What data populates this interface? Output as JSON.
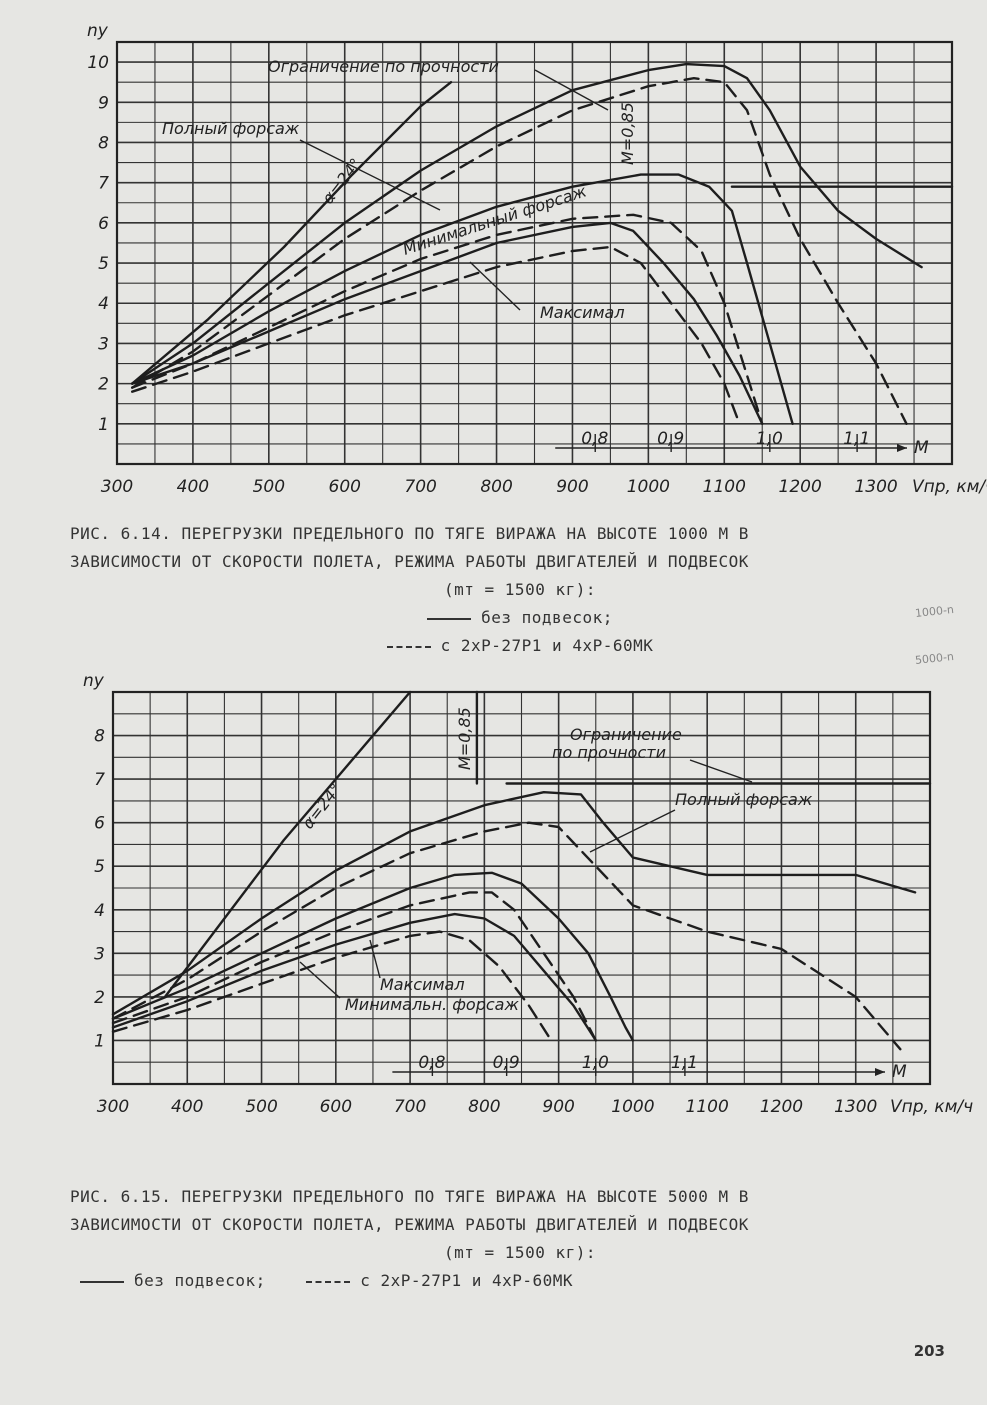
{
  "page": {
    "number": "203"
  },
  "margin_notes": [
    "1000-n",
    "5000-n"
  ],
  "figure1": {
    "caption_line1": "РИС. 6.14. ПЕРЕГРУЗКИ ПРЕДЕЛЬНОГО ПО ТЯГЕ ВИРАЖА НА ВЫСОТЕ 1000 М В",
    "caption_line2": "ЗАВИСИМОСТИ ОТ СКОРОСТИ ПОЛЕТА, РЕЖИМА РАБОТЫ ДВИГАТЕЛЕЙ И ПОДВЕСОК",
    "caption_line3": "(mт = 1500 кг):",
    "legend_solid": "без подвесок;",
    "legend_dashed": "с 2хР-27Р1 и 4хР-60МК"
  },
  "figure2": {
    "caption_line1": "РИС. 6.15. ПЕРЕГРУЗКИ ПРЕДЕЛЬНОГО ПО ТЯГЕ ВИРАЖА НА ВЫСОТЕ 5000 М В",
    "caption_line2": "ЗАВИСИМОСТИ ОТ СКОРОСТИ ПОЛЕТА, РЕЖИМА РАБОТЫ ДВИГАТЕЛЕЙ И ПОДВЕСОК",
    "caption_line3": "(mт = 1500 кг):",
    "legend_solid": "без подвесок;",
    "legend_dashed": "с 2хР-27Р1 и 4хР-60МК"
  },
  "chart_data": [
    {
      "type": "line",
      "title": "",
      "xlabel": "Vпр, км/ч",
      "ylabel": "ny",
      "xlim": [
        300,
        1400
      ],
      "ylim": [
        0,
        10.5
      ],
      "x_ticks": [
        300,
        400,
        500,
        600,
        700,
        800,
        900,
        1000,
        1100,
        1200,
        1300
      ],
      "y_ticks": [
        1,
        2,
        3,
        4,
        5,
        6,
        7,
        8,
        9,
        10
      ],
      "grid": true,
      "mach_scale": {
        "label": "M",
        "ticks": [
          {
            "label": "0,8",
            "x": 930
          },
          {
            "label": "0,9",
            "x": 1030
          },
          {
            "label": "1,0",
            "x": 1160
          },
          {
            "label": "1,1",
            "x": 1275
          }
        ]
      },
      "annotations": [
        "Ограничение по прочности",
        "Полный форсаж",
        "Минимальный форсаж",
        "Максимал",
        "M=0,85",
        "α=24°"
      ],
      "series": [
        {
          "name": "Полный форсаж",
          "style": "solid",
          "x": [
            320,
            400,
            500,
            600,
            700,
            800,
            900,
            1000,
            1050,
            1100,
            1130,
            1160,
            1200,
            1250,
            1300,
            1360
          ],
          "y": [
            2.0,
            3.0,
            4.5,
            6.0,
            7.3,
            8.4,
            9.3,
            9.8,
            9.95,
            9.9,
            9.6,
            8.8,
            7.4,
            6.3,
            5.6,
            4.9
          ]
        },
        {
          "name": "Полный форсаж",
          "style": "dashed",
          "x": [
            320,
            400,
            500,
            600,
            700,
            800,
            900,
            1000,
            1060,
            1100,
            1130,
            1160,
            1200,
            1250,
            1300,
            1340
          ],
          "y": [
            1.9,
            2.8,
            4.2,
            5.6,
            6.8,
            7.9,
            8.8,
            9.4,
            9.6,
            9.5,
            8.8,
            7.2,
            5.6,
            4.0,
            2.5,
            1.0
          ]
        },
        {
          "name": "Минимальный форсаж",
          "style": "solid",
          "x": [
            320,
            400,
            500,
            600,
            700,
            800,
            900,
            990,
            1040,
            1080,
            1110,
            1130,
            1160,
            1190
          ],
          "y": [
            2.0,
            2.7,
            3.8,
            4.8,
            5.7,
            6.4,
            6.9,
            7.2,
            7.2,
            6.9,
            6.3,
            5.0,
            3.0,
            1.0
          ]
        },
        {
          "name": "Минимальный форсаж",
          "style": "dashed",
          "x": [
            320,
            400,
            500,
            600,
            700,
            800,
            900,
            980,
            1030,
            1070,
            1100,
            1125,
            1150
          ],
          "y": [
            1.9,
            2.5,
            3.4,
            4.3,
            5.1,
            5.7,
            6.1,
            6.2,
            6.0,
            5.3,
            4.0,
            2.5,
            1.0
          ]
        },
        {
          "name": "Максимал",
          "style": "solid",
          "x": [
            320,
            400,
            500,
            600,
            700,
            800,
            900,
            950,
            980,
            1020,
            1060,
            1090,
            1120,
            1150
          ],
          "y": [
            2.0,
            2.5,
            3.3,
            4.1,
            4.8,
            5.5,
            5.9,
            6.0,
            5.8,
            5.0,
            4.1,
            3.2,
            2.2,
            1.0
          ]
        },
        {
          "name": "Максимал",
          "style": "dashed",
          "x": [
            320,
            400,
            500,
            600,
            700,
            800,
            900,
            950,
            990,
            1030,
            1070,
            1100,
            1120
          ],
          "y": [
            1.8,
            2.3,
            3.0,
            3.7,
            4.3,
            4.9,
            5.3,
            5.4,
            5.0,
            4.0,
            3.0,
            2.0,
            1.0
          ]
        },
        {
          "name": "α=24°",
          "style": "solid",
          "x": [
            320,
            420,
            520,
            610,
            700,
            740
          ],
          "y": [
            2.0,
            3.6,
            5.4,
            7.2,
            8.9,
            9.5
          ]
        },
        {
          "name": "Ограничение по прочности",
          "style": "solid",
          "x": [
            1110,
            1400
          ],
          "y": [
            6.9,
            6.9
          ]
        }
      ]
    },
    {
      "type": "line",
      "title": "",
      "xlabel": "Vпр, км/ч",
      "ylabel": "ny",
      "xlim": [
        300,
        1400
      ],
      "ylim": [
        0,
        9
      ],
      "x_ticks": [
        300,
        400,
        500,
        600,
        700,
        800,
        900,
        1000,
        1100,
        1200,
        1300
      ],
      "y_ticks": [
        1,
        2,
        3,
        4,
        5,
        6,
        7,
        8
      ],
      "grid": true,
      "mach_scale": {
        "label": "M",
        "ticks": [
          {
            "label": "0,8",
            "x": 730
          },
          {
            "label": "0,9",
            "x": 830
          },
          {
            "label": "1,0",
            "x": 950
          },
          {
            "label": "1,1",
            "x": 1070
          }
        ]
      },
      "annotations": [
        "Ограничение по прочности",
        "Полный форсаж",
        "Максимал",
        "Минимальн. форсаж",
        "M=0,85",
        "α=24°"
      ],
      "series": [
        {
          "name": "Полный форсаж",
          "style": "solid",
          "x": [
            300,
            400,
            500,
            600,
            700,
            800,
            880,
            930,
            960,
            1000,
            1100,
            1200,
            1300,
            1380
          ],
          "y": [
            1.6,
            2.6,
            3.8,
            4.9,
            5.8,
            6.4,
            6.7,
            6.65,
            6.0,
            5.2,
            4.8,
            4.8,
            4.8,
            4.4
          ]
        },
        {
          "name": "Полный форсаж",
          "style": "dashed",
          "x": [
            300,
            400,
            500,
            600,
            700,
            800,
            860,
            900,
            950,
            1000,
            1100,
            1200,
            1300,
            1360
          ],
          "y": [
            1.5,
            2.4,
            3.5,
            4.5,
            5.3,
            5.8,
            6.0,
            5.9,
            5.0,
            4.1,
            3.5,
            3.1,
            2.0,
            0.8
          ]
        },
        {
          "name": "Минимальн. форсаж",
          "style": "solid",
          "x": [
            300,
            400,
            500,
            600,
            700,
            760,
            810,
            850,
            900,
            940,
            970,
            990,
            1000
          ],
          "y": [
            1.5,
            2.2,
            3.0,
            3.8,
            4.5,
            4.8,
            4.85,
            4.6,
            3.8,
            3.0,
            2.0,
            1.3,
            1.0
          ]
        },
        {
          "name": "Минимальн. форсаж",
          "style": "dashed",
          "x": [
            300,
            400,
            500,
            600,
            700,
            780,
            810,
            840,
            880,
            920,
            950
          ],
          "y": [
            1.4,
            2.0,
            2.8,
            3.5,
            4.1,
            4.4,
            4.4,
            4.0,
            3.0,
            2.0,
            1.0
          ]
        },
        {
          "name": "Максимал",
          "style": "solid",
          "x": [
            300,
            400,
            500,
            600,
            700,
            760,
            800,
            840,
            880,
            920,
            950
          ],
          "y": [
            1.3,
            1.9,
            2.6,
            3.2,
            3.7,
            3.9,
            3.8,
            3.4,
            2.6,
            1.8,
            1.0
          ]
        },
        {
          "name": "Максимал",
          "style": "dashed",
          "x": [
            300,
            400,
            500,
            600,
            700,
            740,
            780,
            820,
            860,
            890
          ],
          "y": [
            1.2,
            1.7,
            2.3,
            2.9,
            3.4,
            3.5,
            3.3,
            2.7,
            1.8,
            1.0
          ]
        },
        {
          "name": "α=24°",
          "style": "solid",
          "x": [
            370,
            450,
            530,
            600,
            660,
            700
          ],
          "y": [
            2.0,
            3.8,
            5.6,
            7.0,
            8.2,
            9.0
          ]
        },
        {
          "name": "Ограничение по прочности",
          "style": "solid",
          "x": [
            830,
            1400
          ],
          "y": [
            6.9,
            6.9
          ]
        },
        {
          "name": "M=0,85",
          "style": "solid",
          "x": [
            790,
            790
          ],
          "y": [
            6.9,
            9.0
          ]
        }
      ]
    }
  ]
}
